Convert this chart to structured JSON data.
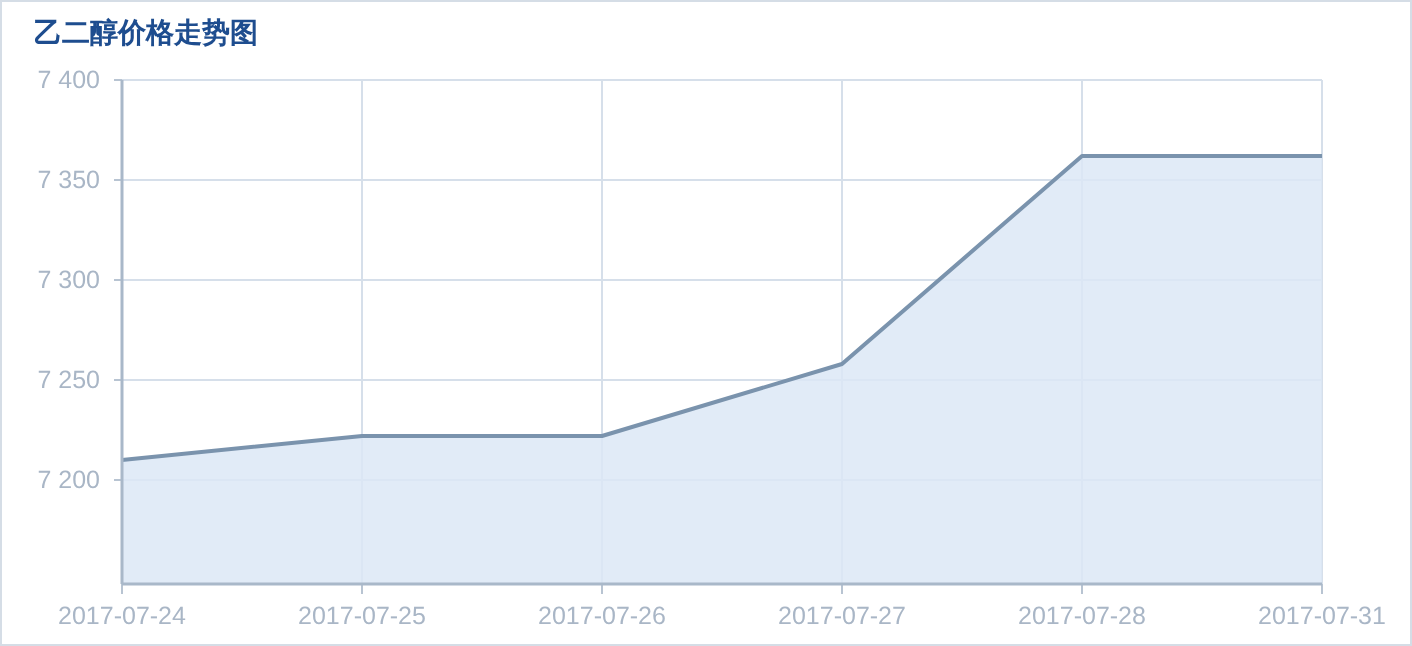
{
  "chart_data": {
    "type": "area",
    "title": "乙二醇价格走势图",
    "categories": [
      "2017-07-24",
      "2017-07-25",
      "2017-07-26",
      "2017-07-27",
      "2017-07-28",
      "2017-07-31"
    ],
    "series": [
      {
        "color": "#7a93ad",
        "values": [
          7210,
          7222,
          7222,
          7258,
          7362,
          7362
        ]
      }
    ],
    "ylim": [
      7148,
      7400
    ],
    "yticks": [
      {
        "value": 7200,
        "label": "7 200"
      },
      {
        "value": 7250,
        "label": "7 250"
      },
      {
        "value": 7300,
        "label": "7 300"
      },
      {
        "value": 7350,
        "label": "7 350"
      },
      {
        "value": 7400,
        "label": "7 400"
      }
    ],
    "grid": true
  }
}
